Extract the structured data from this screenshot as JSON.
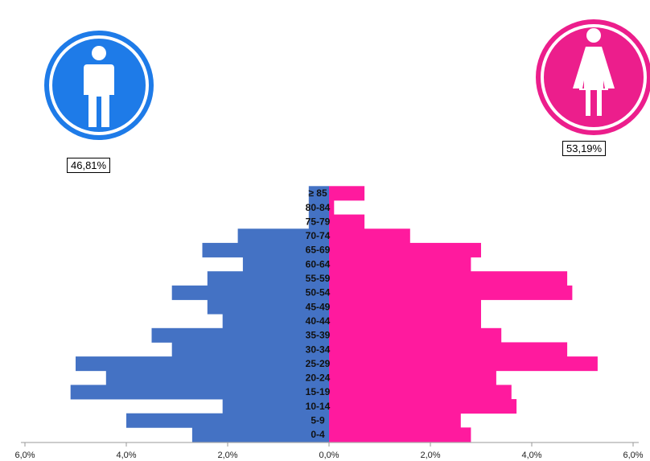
{
  "colors": {
    "male": "#4472C4",
    "female": "#FF1A9E",
    "male_circle": "#1E7BE8",
    "female_circle": "#EC1E8C"
  },
  "icons": {
    "male": "male-person-icon",
    "female": "female-person-icon"
  },
  "totals": {
    "male_pct": "46,81%",
    "female_pct": "53,19%"
  },
  "chart_data": {
    "type": "bar",
    "orientation": "horizontal",
    "categories": [
      "0-4",
      "5-9",
      "10-14",
      "15-19",
      "20-24",
      "25-29",
      "30-34",
      "35-39",
      "40-44",
      "45-49",
      "50-54",
      "55-59",
      "60-64",
      "65-69",
      "70-74",
      "75-79",
      "80-84",
      "≥ 85"
    ],
    "series": [
      {
        "values": [
          2.7,
          4.0,
          2.1,
          5.1,
          4.4,
          5.0,
          3.1,
          3.5,
          2.1,
          2.4,
          3.1,
          2.4,
          1.7,
          2.5,
          1.8,
          0.4,
          0.4,
          0.4
        ]
      },
      {
        "values": [
          2.8,
          2.6,
          3.7,
          3.6,
          3.3,
          5.3,
          4.7,
          3.4,
          3.0,
          3.0,
          4.8,
          4.7,
          2.8,
          3.0,
          1.6,
          0.7,
          0.1,
          0.7
        ]
      }
    ],
    "x_ticks": [
      "6,0%",
      "4,0%",
      "2,0%",
      "0,0%",
      "2,0%",
      "4,0%",
      "6,0%"
    ],
    "xlim": [
      -6,
      6
    ]
  }
}
